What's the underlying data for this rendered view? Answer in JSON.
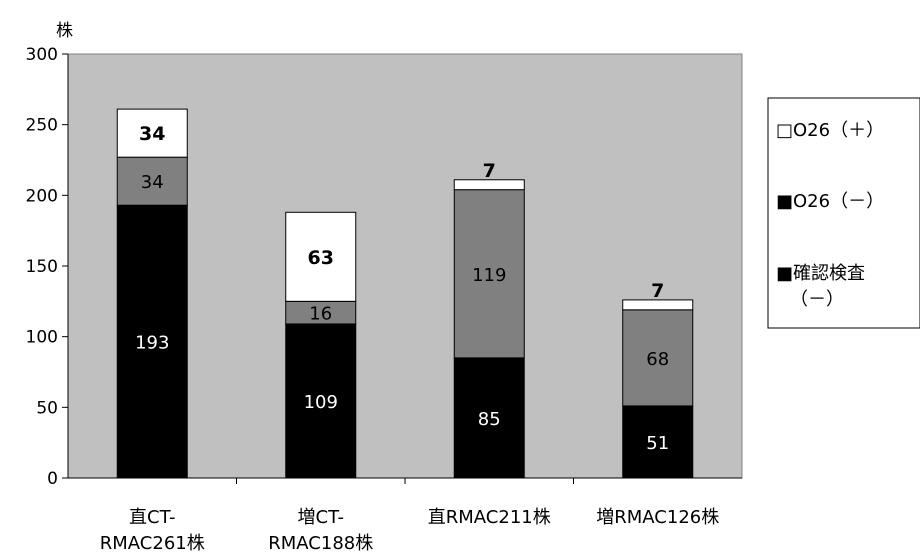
{
  "chart_data": {
    "type": "bar",
    "stacked": true,
    "ylabel": "株",
    "ylim": [
      0,
      300
    ],
    "yticks": [
      0,
      50,
      100,
      150,
      200,
      250,
      300
    ],
    "grid": false,
    "plot_background": "#c0c0c0",
    "legend_position": "right",
    "categories": [
      [
        "直CT-",
        "RMAC261株"
      ],
      [
        "増CT-",
        "RMAC188株"
      ],
      [
        "直RMAC211株"
      ],
      [
        "増RMAC126株"
      ]
    ],
    "series": [
      {
        "name": "確認検査（－）",
        "legend_lines": [
          "■確認検査",
          "（－）"
        ],
        "color": "#000000",
        "label_color": "#ffffff",
        "label_bold": false,
        "values": [
          193,
          109,
          85,
          51
        ]
      },
      {
        "name": "O26（－）",
        "legend_lines": [
          "■O26（－）"
        ],
        "color": "#808080",
        "label_color": "#000000",
        "label_bold": false,
        "values": [
          34,
          16,
          119,
          68
        ]
      },
      {
        "name": "O26（＋）",
        "legend_lines": [
          "□O26（＋）"
        ],
        "color": "#ffffff",
        "label_color": "#000000",
        "label_bold": true,
        "values": [
          34,
          63,
          7,
          7
        ]
      }
    ]
  }
}
